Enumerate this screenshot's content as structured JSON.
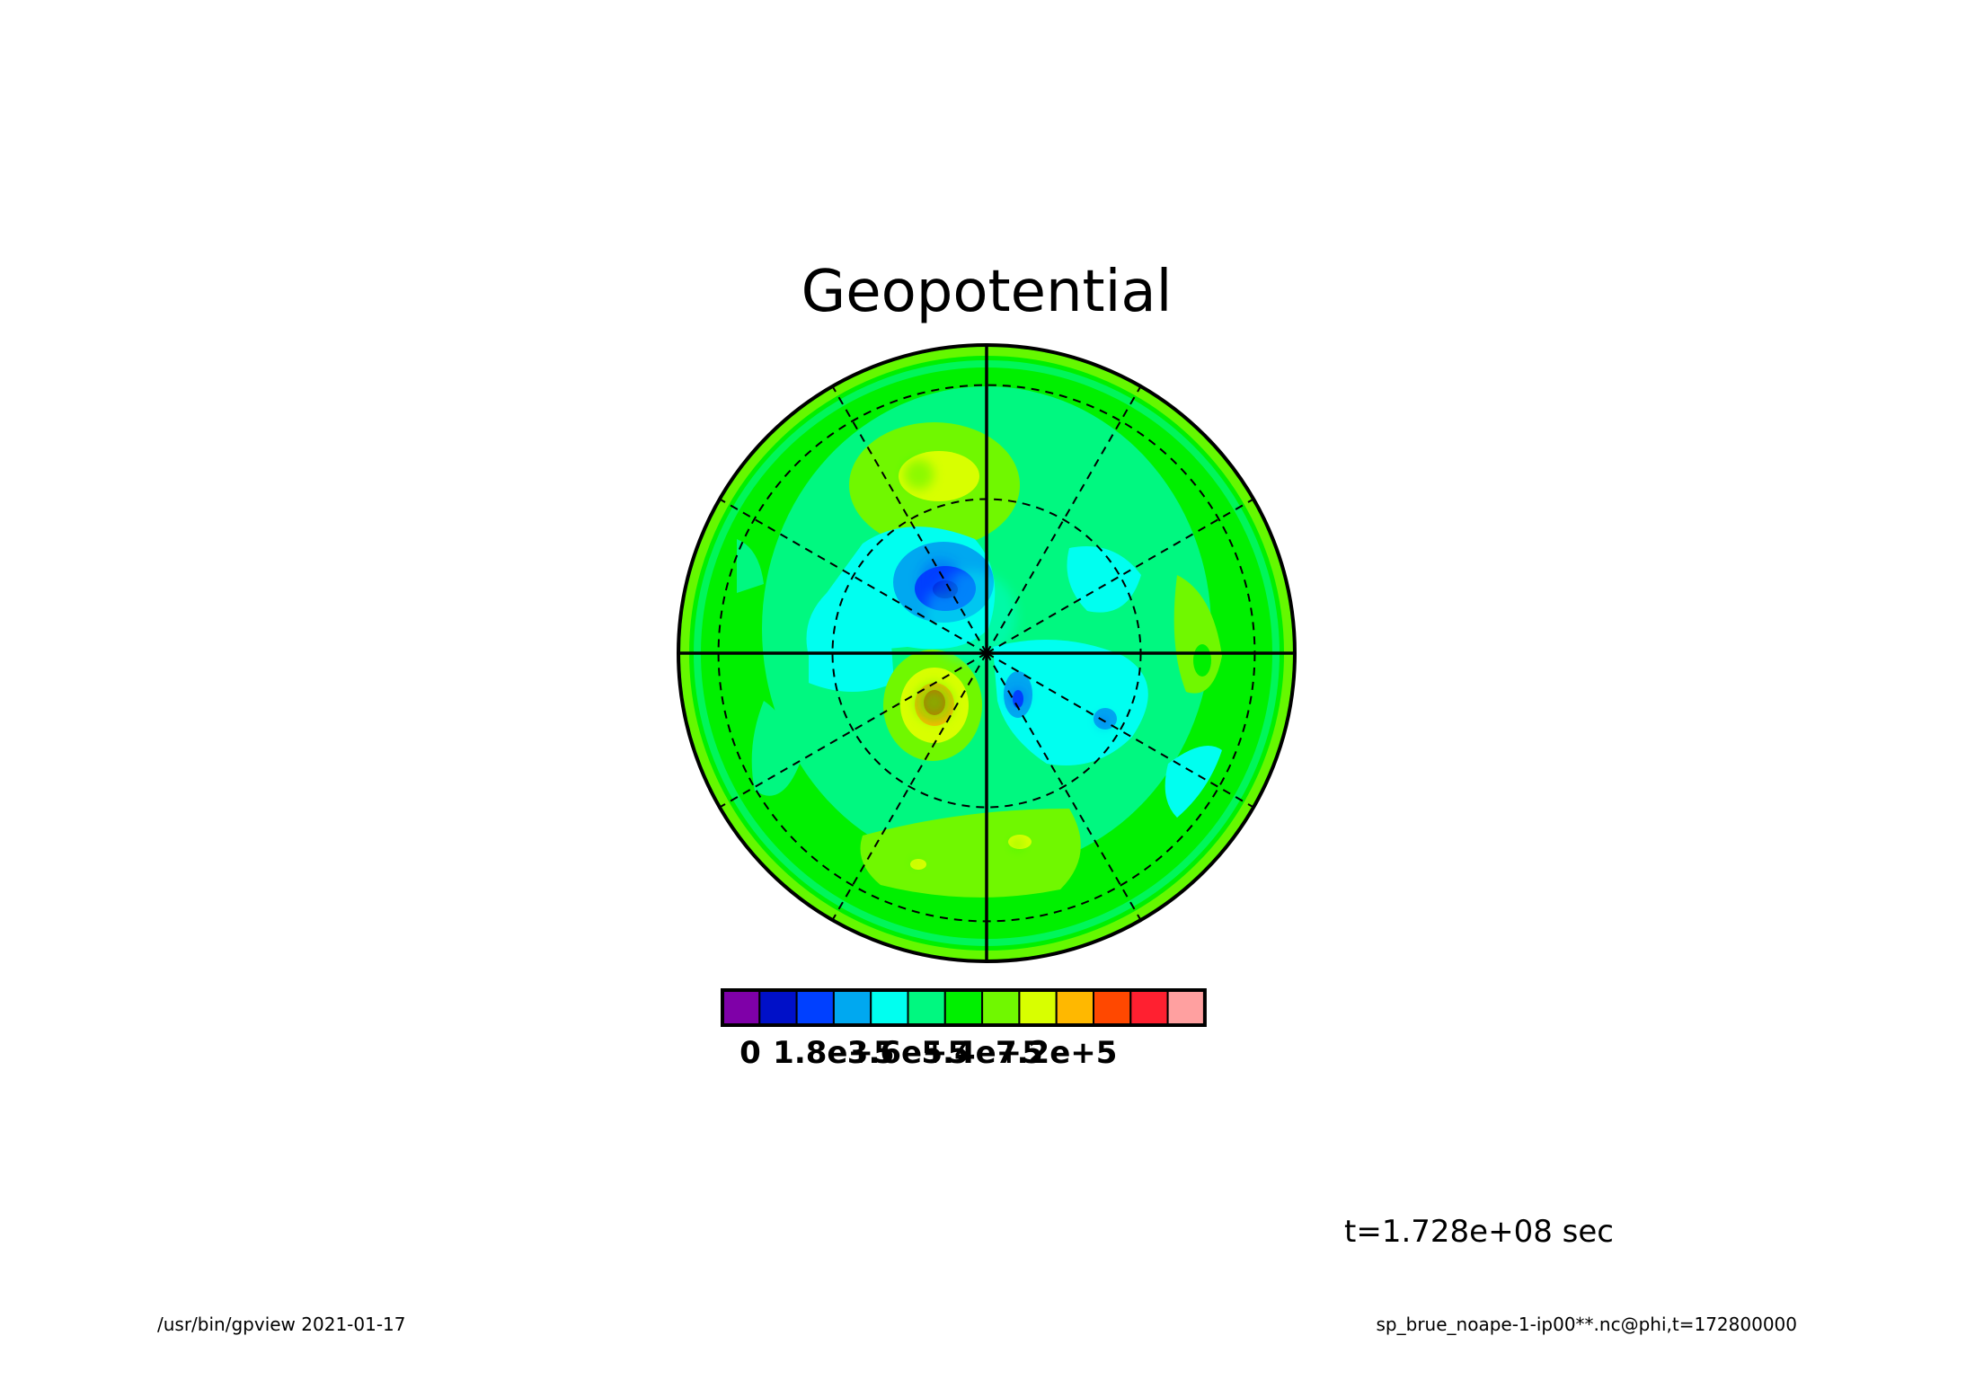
{
  "chart_data": {
    "type": "heatmap",
    "projection": "polar-stereographic",
    "title": "Geopotential",
    "colorbar": {
      "colors": [
        "#7f00a8",
        "#0010c8",
        "#0040ff",
        "#00a8f0",
        "#00fff0",
        "#00f880",
        "#00f000",
        "#70f800",
        "#d8ff00",
        "#ffb800",
        "#ff4800",
        "#ff2030",
        "#ffa0a0"
      ],
      "tick_labels": [
        "0",
        "1.8e+5",
        "3.6e+5",
        "5.4e+5",
        "7.2e+5"
      ],
      "tick_positions": [
        1,
        3,
        5,
        7,
        9
      ]
    },
    "grid": true,
    "features": [
      {
        "value": 330000.0,
        "x": -0.05,
        "y": 0.12,
        "r": 0.42
      },
      {
        "value": 480000.0,
        "x": -0.22,
        "y": 0.58,
        "r": 0.14
      },
      {
        "value": 150000.0,
        "x": -0.15,
        "y": 0.24,
        "r": 0.19
      },
      {
        "value": 90000.0,
        "x": -0.14,
        "y": 0.21,
        "r": 0.11
      },
      {
        "value": 30000.0,
        "x": -0.13,
        "y": 0.2,
        "r": 0.05
      },
      {
        "value": 620000.0,
        "x": -0.17,
        "y": -0.16,
        "r": 0.1
      },
      {
        "value": 450000.0,
        "x": -0.17,
        "y": -0.16,
        "r": 0.18
      },
      {
        "value": 150000.0,
        "x": 0.1,
        "y": -0.14,
        "r": 0.08
      },
      {
        "value": 150000.0,
        "x": 0.38,
        "y": -0.22,
        "r": 0.05
      },
      {
        "value": 450000.0,
        "x": 0.1,
        "y": -0.62,
        "r": 0.05
      },
      {
        "value": 450000.0,
        "x": -0.23,
        "y": -0.68,
        "r": 0.03
      }
    ]
  },
  "annotations": {
    "time": "t=1.728e+08 sec",
    "footer_left": "/usr/bin/gpview   2021-01-17",
    "footer_right": "sp_brue_noape-1-ip00**.nc@phi,t=172800000"
  }
}
